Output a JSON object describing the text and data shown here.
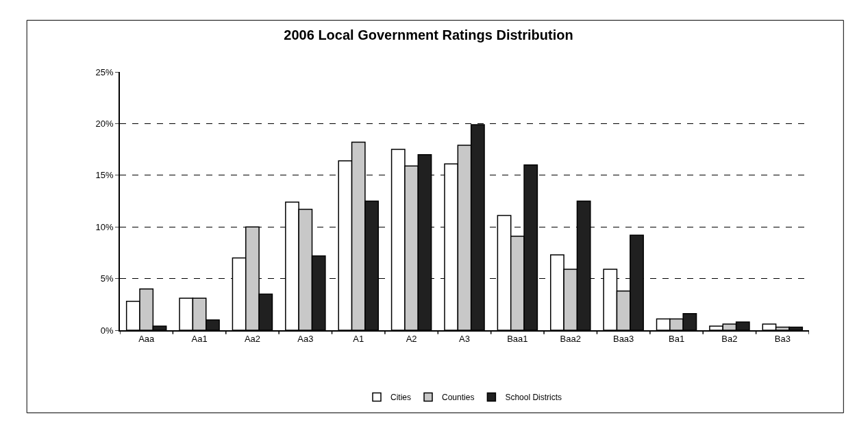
{
  "chart_data": {
    "type": "bar",
    "title": "2006 Local Government Ratings Distribution",
    "categories": [
      "Aaa",
      "Aa1",
      "Aa2",
      "Aa3",
      "A1",
      "A2",
      "A3",
      "Baa1",
      "Baa2",
      "Baa3",
      "Ba1",
      "Ba2",
      "Ba3"
    ],
    "series": [
      {
        "name": "Cities",
        "color": "#ffffff",
        "values": [
          2.8,
          3.1,
          7.0,
          12.4,
          16.4,
          17.5,
          16.1,
          11.1,
          7.3,
          5.9,
          1.1,
          0.4,
          0.6
        ]
      },
      {
        "name": "Counties",
        "color": "#c8c8c8",
        "values": [
          4.0,
          3.1,
          10.0,
          11.7,
          18.2,
          15.9,
          17.9,
          9.1,
          5.9,
          3.8,
          1.1,
          0.6,
          0.3
        ]
      },
      {
        "name": "School Districts",
        "color": "#202020",
        "values": [
          0.4,
          1.0,
          3.5,
          7.2,
          12.5,
          17.0,
          19.9,
          16.0,
          12.5,
          9.2,
          1.6,
          0.8,
          0.3
        ]
      }
    ],
    "ylim": [
      0,
      25
    ],
    "yticks": [
      {
        "value": 0,
        "label": "0%"
      },
      {
        "value": 5,
        "label": "5%"
      },
      {
        "value": 10,
        "label": "10%"
      },
      {
        "value": 15,
        "label": "15%"
      },
      {
        "value": 20,
        "label": "20%"
      },
      {
        "value": 25,
        "label": "25%"
      }
    ],
    "grid": "y",
    "legend": "bottom"
  }
}
